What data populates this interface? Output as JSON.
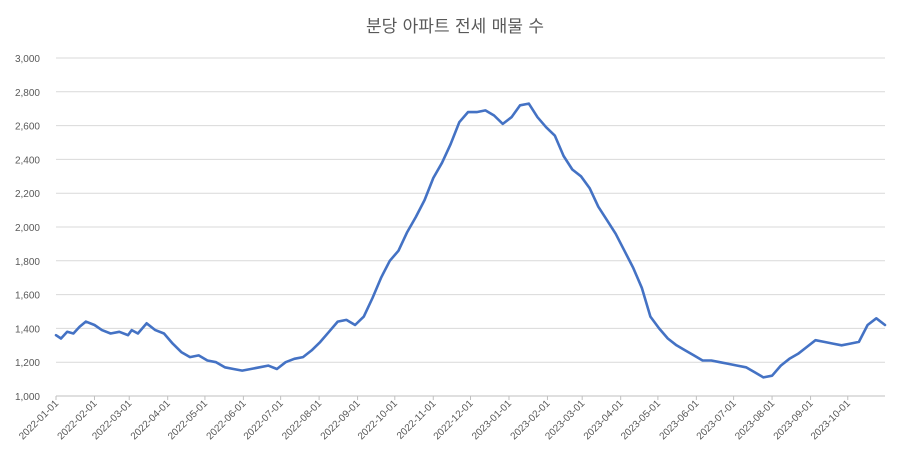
{
  "chart_data": {
    "type": "line",
    "title": "분당 아파트 전세 매물 수",
    "xlabel": "",
    "ylabel": "",
    "ylim": [
      1000,
      3000
    ],
    "yticks": [
      "1,000",
      "1,200",
      "1,400",
      "1,600",
      "1,800",
      "2,000",
      "2,200",
      "2,400",
      "2,600",
      "2,800",
      "3,000"
    ],
    "ytick_values": [
      1000,
      1200,
      1400,
      1600,
      1800,
      2000,
      2200,
      2400,
      2600,
      2800,
      3000
    ],
    "grid": true,
    "legend": "none",
    "color": "#4472C4",
    "xlim": [
      "2022-01-01",
      "2023-10-31"
    ],
    "x_tick_labels": [
      "2022-01-01",
      "2022-02-01",
      "2022-03-01",
      "2022-04-01",
      "2022-05-01",
      "2022-06-01",
      "2022-07-01",
      "2022-08-01",
      "2022-09-01",
      "2022-10-01",
      "2022-11-01",
      "2022-12-01",
      "2023-01-01",
      "2023-02-01",
      "2023-03-01",
      "2023-04-01",
      "2023-05-01",
      "2023-06-01",
      "2023-07-01",
      "2023-08-01",
      "2023-09-01",
      "2023-10-01"
    ],
    "series": [
      {
        "x": [
          "2022-01-01",
          "2022-01-05",
          "2022-01-10",
          "2022-01-15",
          "2022-01-20",
          "2022-01-25",
          "2022-02-01",
          "2022-02-07",
          "2022-02-14",
          "2022-02-21",
          "2022-02-28",
          "2022-03-03",
          "2022-03-08",
          "2022-03-15",
          "2022-03-22",
          "2022-03-29",
          "2022-04-05",
          "2022-04-12",
          "2022-04-19",
          "2022-04-26",
          "2022-05-03",
          "2022-05-10",
          "2022-05-17",
          "2022-05-24",
          "2022-05-31",
          "2022-06-07",
          "2022-06-14",
          "2022-06-21",
          "2022-06-28",
          "2022-07-05",
          "2022-07-12",
          "2022-07-19",
          "2022-07-26",
          "2022-08-02",
          "2022-08-09",
          "2022-08-16",
          "2022-08-23",
          "2022-08-30",
          "2022-09-06",
          "2022-09-13",
          "2022-09-20",
          "2022-09-27",
          "2022-10-04",
          "2022-10-11",
          "2022-10-18",
          "2022-10-25",
          "2022-11-01",
          "2022-11-08",
          "2022-11-15",
          "2022-11-22",
          "2022-11-29",
          "2022-12-06",
          "2022-12-13",
          "2022-12-20",
          "2022-12-27",
          "2023-01-03",
          "2023-01-10",
          "2023-01-17",
          "2023-01-24",
          "2023-01-31",
          "2023-02-07",
          "2023-02-14",
          "2023-02-21",
          "2023-02-28",
          "2023-03-07",
          "2023-03-14",
          "2023-03-21",
          "2023-03-28",
          "2023-04-04",
          "2023-04-11",
          "2023-04-18",
          "2023-04-25",
          "2023-05-02",
          "2023-05-09",
          "2023-05-16",
          "2023-05-23",
          "2023-05-30",
          "2023-06-06",
          "2023-06-13",
          "2023-06-20",
          "2023-06-27",
          "2023-07-04",
          "2023-07-11",
          "2023-07-18",
          "2023-07-25",
          "2023-08-01",
          "2023-08-08",
          "2023-08-15",
          "2023-08-22",
          "2023-08-29",
          "2023-09-05",
          "2023-09-12",
          "2023-09-19",
          "2023-09-26",
          "2023-10-03",
          "2023-10-10",
          "2023-10-17",
          "2023-10-24",
          "2023-10-31"
        ],
        "values": [
          1360,
          1340,
          1380,
          1370,
          1410,
          1440,
          1420,
          1390,
          1370,
          1380,
          1360,
          1390,
          1370,
          1430,
          1390,
          1370,
          1310,
          1260,
          1230,
          1240,
          1210,
          1200,
          1170,
          1160,
          1150,
          1160,
          1170,
          1180,
          1160,
          1200,
          1220,
          1230,
          1270,
          1320,
          1380,
          1440,
          1450,
          1420,
          1470,
          1580,
          1700,
          1800,
          1860,
          1970,
          2060,
          2160,
          2290,
          2380,
          2490,
          2620,
          2680,
          2680,
          2690,
          2660,
          2610,
          2650,
          2720,
          2730,
          2650,
          2590,
          2540,
          2420,
          2340,
          2300,
          2230,
          2120,
          2040,
          1960,
          1860,
          1760,
          1640,
          1470,
          1400,
          1340,
          1300,
          1270,
          1240,
          1210,
          1210,
          1200,
          1190,
          1180,
          1170,
          1140,
          1110,
          1120,
          1180,
          1220,
          1250,
          1290,
          1330,
          1320,
          1310,
          1300,
          1310,
          1320,
          1420,
          1460,
          1420
        ]
      }
    ]
  }
}
